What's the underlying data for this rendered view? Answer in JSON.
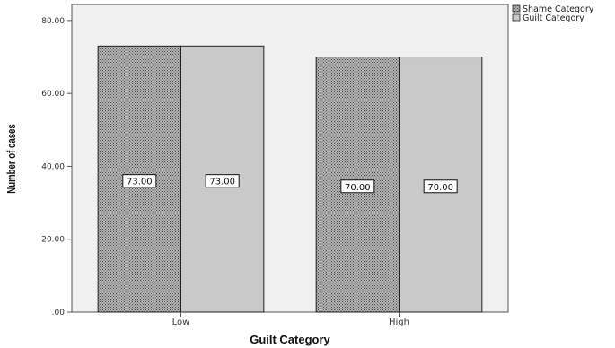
{
  "chart_data": {
    "type": "bar",
    "categories": [
      "Low",
      "High"
    ],
    "series": [
      {
        "name": "Shame Category",
        "values": [
          73.0,
          70.0
        ]
      },
      {
        "name": "Guilt Category",
        "values": [
          73.0,
          70.0
        ]
      }
    ],
    "data_labels": [
      [
        "73.00",
        "70.00"
      ],
      [
        "73.00",
        "70.00"
      ]
    ],
    "xlabel": "Guilt Category",
    "ylabel": "Number of cases",
    "yticks": [
      ".00",
      "20.00",
      "40.00",
      "60.00",
      "80.00"
    ],
    "ylim": [
      0,
      80
    ],
    "grid": false,
    "legend_position": "top-right outside plot",
    "colors": {
      "plot_background": "#f0f0f0",
      "shame_fill": "#9a9a9a",
      "guilt_fill": "#c9c9c9",
      "bar_edge": "#222222"
    }
  }
}
